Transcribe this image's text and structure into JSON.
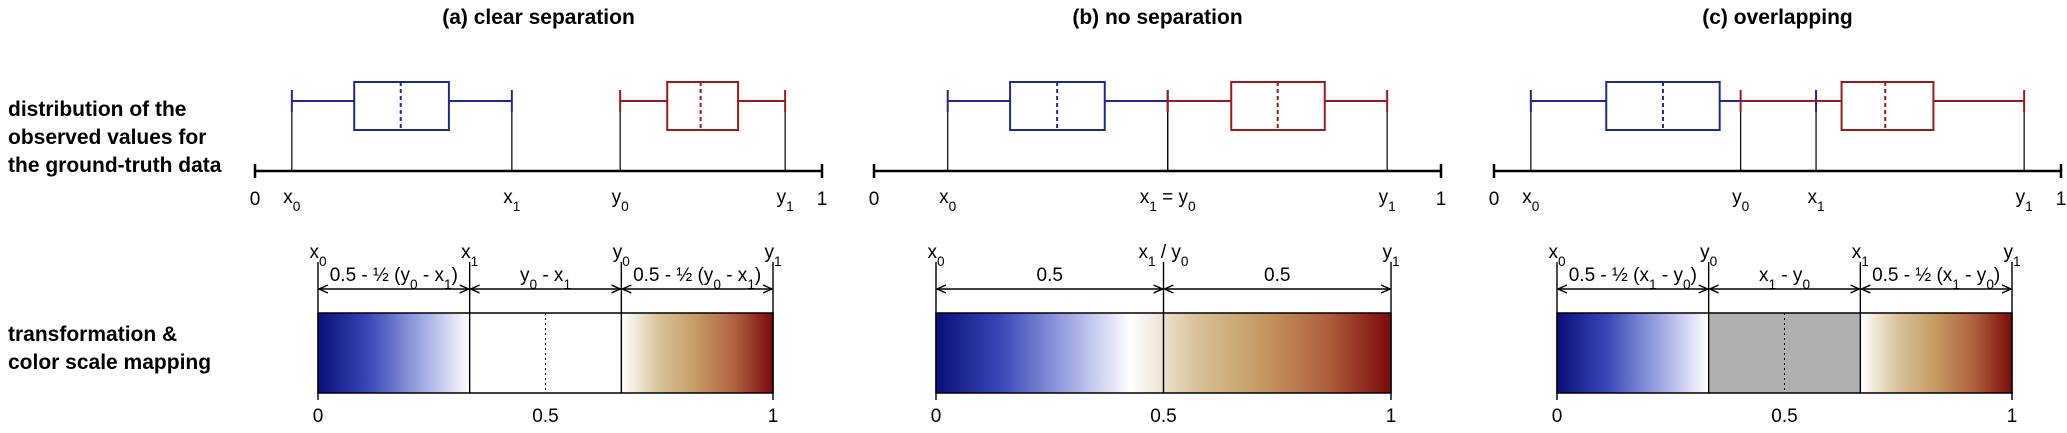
{
  "row_labels": {
    "distribution": [
      "distribution of the",
      "observed values for",
      "the ground-truth data"
    ],
    "mapping": [
      "transformation &",
      "color scale mapping"
    ]
  },
  "colors": {
    "blue": "#1f2a8f",
    "red": "#9e1a1a",
    "grey": "#b0b0b0",
    "gradient_blue": [
      "#0a0f7a",
      "#3a47b8",
      "#9aa3e0",
      "#ffffff"
    ],
    "gradient_red": [
      "#ffffff",
      "#d8c29a",
      "#c49a62",
      "#b0603f",
      "#7a0a0a"
    ]
  },
  "panels": [
    {
      "title": "(a) clear separation",
      "case": "separated",
      "blue_box": {
        "min": 0.065,
        "q1": 0.175,
        "median": 0.257,
        "q3": 0.342,
        "max": 0.453
      },
      "red_box": {
        "min": 0.644,
        "q1": 0.727,
        "median": 0.786,
        "q3": 0.852,
        "max": 0.935
      },
      "axis_ticks": {
        "min": "0",
        "max": "1",
        "markers": [
          {
            "base": "x",
            "sub": "0",
            "at": "x0"
          },
          {
            "base": "x",
            "sub": "1",
            "at": "x1"
          },
          {
            "base": "y",
            "sub": "0",
            "at": "y0"
          },
          {
            "base": "y",
            "sub": "1",
            "at": "y1"
          }
        ]
      },
      "scale_labels": [
        {
          "parts": [
            [
              "x",
              ""
            ],
            [
              "0",
              "sub"
            ]
          ],
          "at": "x0"
        },
        {
          "parts": [
            [
              "x",
              ""
            ],
            [
              "1",
              "sub"
            ]
          ],
          "at": "x1"
        },
        {
          "parts": [
            [
              "y",
              ""
            ],
            [
              "0",
              "sub"
            ]
          ],
          "at": "y0"
        },
        {
          "parts": [
            [
              "y",
              ""
            ],
            [
              "1",
              "sub"
            ]
          ],
          "at": "y1"
        }
      ],
      "segments": [
        {
          "parts": [
            [
              "0.5 - ½ (y",
              ""
            ],
            [
              "0",
              "sub"
            ],
            [
              " - x",
              ""
            ],
            [
              "1",
              "sub"
            ],
            [
              ")",
              ""
            ]
          ]
        },
        {
          "parts": [
            [
              "y",
              ""
            ],
            [
              "0",
              "sub"
            ],
            [
              " - x",
              ""
            ],
            [
              "1",
              "sub"
            ]
          ]
        },
        {
          "parts": [
            [
              "0.5 - ½ (y",
              ""
            ],
            [
              "0",
              "sub"
            ],
            [
              " - x",
              ""
            ],
            [
              "1",
              "sub"
            ],
            [
              ")",
              ""
            ]
          ]
        }
      ],
      "bar_ticks": [
        "0",
        "0.5",
        "1"
      ],
      "mid_fill": "white"
    },
    {
      "title": "(b) no separation",
      "case": "touching",
      "blue_box": {
        "min": 0.13,
        "q1": 0.24,
        "median": 0.323,
        "q3": 0.407,
        "max": 0.518
      },
      "red_box": {
        "min": 0.518,
        "q1": 0.63,
        "median": 0.712,
        "q3": 0.795,
        "max": 0.905
      },
      "axis_ticks": {
        "min": "0",
        "max": "1",
        "markers": [
          {
            "base": "x",
            "sub": "0",
            "at": "x0"
          },
          {
            "base": "x",
            "sub": "1",
            "text2": " = y",
            "sub2": "0",
            "at": "x1"
          },
          {
            "base": "y",
            "sub": "1",
            "at": "y1"
          }
        ]
      },
      "scale_labels": [
        {
          "parts": [
            [
              "x",
              ""
            ],
            [
              "0",
              "sub"
            ]
          ],
          "at": "x0"
        },
        {
          "parts": [
            [
              "x",
              ""
            ],
            [
              "1",
              "sub"
            ],
            [
              " / y",
              ""
            ],
            [
              "0",
              "sub"
            ]
          ],
          "at": "x1"
        },
        {
          "parts": [
            [
              "y",
              ""
            ],
            [
              "1",
              "sub"
            ]
          ],
          "at": "y1"
        }
      ],
      "segments": [
        {
          "parts": [
            [
              "0.5",
              ""
            ]
          ]
        },
        {
          "parts": [
            [
              "0.5",
              ""
            ]
          ]
        }
      ],
      "bar_ticks": [
        "0",
        "0.5",
        "1"
      ],
      "mid_fill": "none"
    },
    {
      "title": "(c) overlapping",
      "case": "overlapping",
      "blue_box": {
        "min": 0.065,
        "q1": 0.198,
        "median": 0.298,
        "q3": 0.398,
        "max": 0.568
      },
      "red_box": {
        "min": 0.435,
        "q1": 0.613,
        "median": 0.69,
        "q3": 0.775,
        "max": 0.935
      },
      "axis_ticks": {
        "min": "0",
        "max": "1",
        "markers": [
          {
            "base": "x",
            "sub": "0",
            "at": "x0"
          },
          {
            "base": "y",
            "sub": "0",
            "at": "y0"
          },
          {
            "base": "x",
            "sub": "1",
            "at": "x1"
          },
          {
            "base": "y",
            "sub": "1",
            "at": "y1"
          }
        ]
      },
      "scale_labels": [
        {
          "parts": [
            [
              "x",
              ""
            ],
            [
              "0",
              "sub"
            ]
          ],
          "at": "x0"
        },
        {
          "parts": [
            [
              "y",
              ""
            ],
            [
              "0",
              "sub"
            ]
          ],
          "at": "y0"
        },
        {
          "parts": [
            [
              "x",
              ""
            ],
            [
              "1",
              "sub"
            ]
          ],
          "at": "x1"
        },
        {
          "parts": [
            [
              "y",
              ""
            ],
            [
              "1",
              "sub"
            ]
          ],
          "at": "y1"
        }
      ],
      "segments": [
        {
          "parts": [
            [
              "0.5 - ½ (x",
              ""
            ],
            [
              "1",
              "sub"
            ],
            [
              " - y",
              ""
            ],
            [
              "0",
              "sub"
            ],
            [
              ")",
              ""
            ]
          ]
        },
        {
          "parts": [
            [
              "x",
              ""
            ],
            [
              "1",
              "sub"
            ],
            [
              " - y",
              ""
            ],
            [
              "0",
              "sub"
            ]
          ]
        },
        {
          "parts": [
            [
              "0.5 - ½ (x",
              ""
            ],
            [
              "1",
              "sub"
            ],
            [
              " - y",
              ""
            ],
            [
              "0",
              "sub"
            ],
            [
              ")",
              ""
            ]
          ]
        }
      ],
      "bar_ticks": [
        "0",
        "0.5",
        "1"
      ],
      "mid_fill": "grey"
    }
  ]
}
